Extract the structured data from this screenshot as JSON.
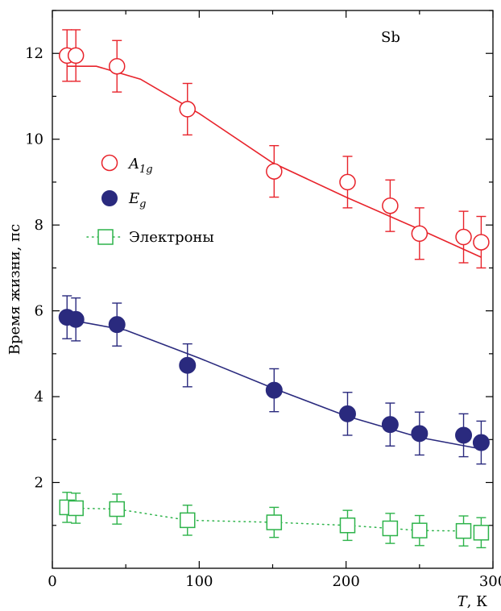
{
  "chart_data": {
    "type": "scatter",
    "annotation": "Sb",
    "xlabel": {
      "var": "T",
      "unit": ", К"
    },
    "ylabel": "Время жизни, пс",
    "xlim": [
      0,
      300
    ],
    "ylim": [
      0,
      13
    ],
    "x_ticks": [
      0,
      100,
      200,
      300
    ],
    "y_ticks": [
      2,
      4,
      6,
      8,
      10,
      12
    ],
    "legend_position": "upper-left",
    "series": [
      {
        "key": "a1g",
        "name": "A",
        "name_sub": "1g",
        "color": "#e8232b",
        "marker": "circle-open",
        "x": [
          10,
          16,
          44,
          92,
          151,
          201,
          230,
          250,
          280,
          292
        ],
        "y": [
          11.95,
          11.95,
          11.7,
          10.7,
          9.25,
          9.0,
          8.45,
          7.8,
          7.72,
          7.6
        ],
        "err": [
          0.6,
          0.6,
          0.6,
          0.6,
          0.6,
          0.6,
          0.6,
          0.6,
          0.6,
          0.6
        ],
        "fit": [
          [
            10,
            11.7
          ],
          [
            30,
            11.7
          ],
          [
            60,
            11.4
          ],
          [
            100,
            10.6
          ],
          [
            150,
            9.45
          ],
          [
            200,
            8.65
          ],
          [
            250,
            7.9
          ],
          [
            292,
            7.25
          ]
        ],
        "fit_style": "solid"
      },
      {
        "key": "eg",
        "name": "E",
        "name_sub": "g",
        "color": "#2a2a7e",
        "marker": "circle-filled",
        "x": [
          10,
          16,
          44,
          92,
          151,
          201,
          230,
          250,
          280,
          292
        ],
        "y": [
          5.85,
          5.8,
          5.68,
          4.73,
          4.15,
          3.6,
          3.35,
          3.14,
          3.1,
          2.93
        ],
        "err": [
          0.5,
          0.5,
          0.5,
          0.5,
          0.5,
          0.5,
          0.5,
          0.5,
          0.5,
          0.5
        ],
        "fit": [
          [
            10,
            5.8
          ],
          [
            50,
            5.55
          ],
          [
            100,
            4.9
          ],
          [
            150,
            4.2
          ],
          [
            200,
            3.55
          ],
          [
            250,
            3.05
          ],
          [
            292,
            2.78
          ]
        ],
        "fit_style": "solid"
      },
      {
        "key": "el",
        "name": "Электроны",
        "color": "#2db34a",
        "marker": "square-open",
        "x": [
          10,
          16,
          44,
          92,
          151,
          201,
          230,
          250,
          280,
          292
        ],
        "y": [
          1.42,
          1.4,
          1.38,
          1.12,
          1.07,
          1.0,
          0.93,
          0.88,
          0.87,
          0.83
        ],
        "err": [
          0.35,
          0.35,
          0.35,
          0.35,
          0.35,
          0.35,
          0.35,
          0.35,
          0.35,
          0.35
        ],
        "fit": [
          [
            10,
            1.42
          ],
          [
            16,
            1.4
          ],
          [
            44,
            1.38
          ],
          [
            92,
            1.12
          ],
          [
            151,
            1.07
          ],
          [
            201,
            1.0
          ],
          [
            230,
            0.93
          ],
          [
            250,
            0.88
          ],
          [
            280,
            0.87
          ],
          [
            292,
            0.83
          ]
        ],
        "fit_style": "dotted"
      }
    ]
  }
}
